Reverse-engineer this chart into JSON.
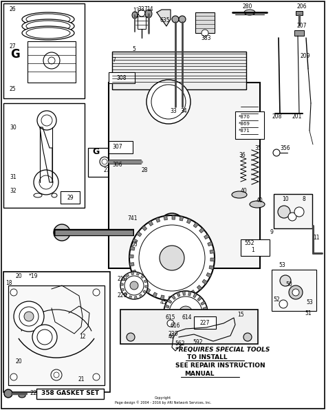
{
  "background_color": "#ffffff",
  "fig_width": 4.74,
  "fig_height": 5.96,
  "dpi": 100,
  "note_line1": "*REQUIRES SPECIAL TOOLS",
  "note_line2": "TO INSTALL",
  "note_line3": "SEE REPAIR INSTRUCTION",
  "note_line4": "MANUAL",
  "bottom_label": "358 GASKET SET",
  "copyright": "Copyright\nPage design © 2004 - 2016 by ARI Network Services, Inc."
}
